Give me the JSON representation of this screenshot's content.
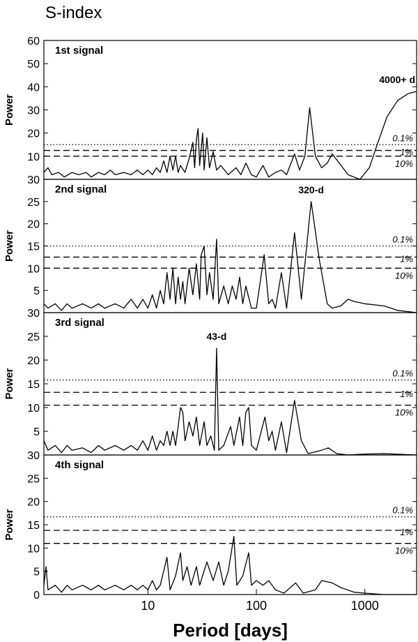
{
  "title": "S-index",
  "chart_data": [
    {
      "type": "line",
      "title": "1st signal",
      "ylabel": "Power",
      "annotation": "4000+ d",
      "xscale": "log",
      "xlim": [
        1.1,
        3000
      ],
      "ylim": [
        0,
        60
      ],
      "yticks": [
        10,
        20,
        30,
        40,
        50,
        60
      ],
      "thresholds": [
        {
          "value": 15,
          "label": "0.1%",
          "dash": "dotted"
        },
        {
          "value": 12.5,
          "label": "1%",
          "dash": "dashed"
        },
        {
          "value": 10,
          "label": "10%",
          "dash": "dashed"
        }
      ],
      "x": [
        1.1,
        1.2,
        1.3,
        1.5,
        1.7,
        2,
        2.3,
        2.7,
        3,
        3.5,
        4,
        4.5,
        5,
        6,
        7,
        8,
        9,
        10,
        11,
        12,
        13,
        14,
        15,
        16,
        17,
        18,
        19,
        20,
        22,
        24,
        26,
        27,
        28,
        29,
        30,
        32,
        33,
        35,
        37,
        40,
        43,
        47,
        55,
        65,
        72,
        80,
        90,
        100,
        115,
        130,
        150,
        170,
        190,
        225,
        250,
        280,
        310,
        350,
        400,
        450,
        500,
        560,
        700,
        900,
        1100,
        1300,
        1600,
        2000,
        2500,
        3000
      ],
      "series": [
        {
          "color": "#000000",
          "values": [
            3,
            5,
            2,
            3,
            1,
            3,
            2,
            3,
            1,
            3,
            2,
            4,
            2,
            3,
            2,
            4,
            2,
            4,
            2,
            5,
            3,
            8,
            3,
            10,
            4,
            10,
            3,
            6,
            3,
            9,
            16,
            5,
            17,
            22,
            6,
            20,
            4,
            18,
            5,
            12,
            4,
            6,
            2,
            5,
            2,
            7,
            2,
            1,
            6,
            1,
            3,
            4,
            2,
            11,
            4,
            10,
            31,
            10,
            5,
            7,
            11,
            8,
            2,
            0,
            5,
            15,
            27,
            34,
            37,
            38
          ]
        }
      ]
    },
    {
      "type": "line",
      "title": "2nd signal",
      "ylabel": "Power",
      "annotation": "320-d",
      "xscale": "log",
      "xlim": [
        1.1,
        3000
      ],
      "ylim": [
        0,
        30
      ],
      "yticks": [
        5,
        10,
        15,
        20,
        25,
        30
      ],
      "thresholds": [
        {
          "value": 15,
          "label": "0.1%",
          "dash": "dotted"
        },
        {
          "value": 12.5,
          "label": "1%",
          "dash": "dashed"
        },
        {
          "value": 10,
          "label": "10%",
          "dash": "dashed"
        }
      ],
      "x": [
        1.1,
        1.2,
        1.4,
        1.6,
        1.8,
        2,
        2.5,
        3,
        3.5,
        4,
        5,
        6,
        7,
        8,
        9,
        10,
        11,
        12,
        13,
        14,
        15,
        16,
        17,
        18,
        19,
        20,
        21,
        22,
        24,
        26,
        28,
        30,
        31,
        33,
        35,
        37,
        40,
        43,
        45,
        50,
        55,
        60,
        65,
        70,
        75,
        80,
        90,
        100,
        118,
        130,
        140,
        150,
        170,
        190,
        225,
        260,
        320,
        380,
        450,
        500,
        600,
        700,
        800,
        1000,
        1500,
        2000,
        3000
      ],
      "series": [
        {
          "color": "#000000",
          "values": [
            2,
            1,
            2,
            0.5,
            2,
            1,
            2,
            1,
            2,
            1,
            2,
            1,
            3,
            1,
            3,
            1,
            4,
            1,
            5,
            2,
            9,
            3,
            10,
            2,
            8,
            3,
            7,
            2,
            10,
            4,
            11,
            3,
            13,
            15,
            4,
            9,
            3,
            16.5,
            2,
            6,
            2,
            6,
            3,
            8,
            2,
            6,
            1,
            1,
            13,
            2,
            3,
            1,
            9,
            1,
            18,
            3,
            25,
            12,
            2,
            1,
            1.5,
            3,
            2.5,
            2,
            1.5,
            0.5,
            0
          ]
        }
      ]
    },
    {
      "type": "line",
      "title": "3rd signal",
      "ylabel": "Power",
      "annotation": "43-d",
      "xscale": "log",
      "xlim": [
        1.1,
        3000
      ],
      "ylim": [
        0,
        30
      ],
      "yticks": [
        5,
        10,
        15,
        20,
        25,
        30
      ],
      "thresholds": [
        {
          "value": 15.8,
          "label": "0.1%",
          "dash": "dotted"
        },
        {
          "value": 13.2,
          "label": "1%",
          "dash": "dashed"
        },
        {
          "value": 10.5,
          "label": "10%",
          "dash": "dashed"
        }
      ],
      "x": [
        1.1,
        1.2,
        1.4,
        1.6,
        1.8,
        2,
        2.5,
        3,
        3.5,
        4,
        5,
        6,
        7,
        8,
        9,
        10,
        11,
        12,
        13,
        14,
        15,
        16,
        17,
        18,
        19,
        20,
        21,
        22,
        24,
        26,
        28,
        30,
        33,
        35,
        38,
        41,
        43,
        45,
        50,
        58,
        62,
        70,
        75,
        80,
        85,
        90,
        100,
        120,
        130,
        140,
        150,
        170,
        190,
        225,
        260,
        300,
        400,
        460,
        550,
        700,
        1000,
        1500,
        3000
      ],
      "series": [
        {
          "color": "#000000",
          "values": [
            3,
            1,
            2,
            0.5,
            2,
            1,
            1.5,
            0.5,
            2,
            1,
            2,
            1,
            2,
            1,
            3,
            1,
            4,
            1,
            3,
            2,
            5,
            2,
            5,
            2,
            6,
            10,
            9,
            3,
            7,
            4,
            8,
            2,
            7,
            2,
            4,
            1,
            22.5,
            1,
            2,
            6,
            2,
            8,
            2,
            9,
            10,
            2,
            1,
            8,
            3,
            5,
            1,
            7,
            0.5,
            11.5,
            3,
            0.3,
            1,
            1.5,
            0.3,
            0,
            0.2,
            0.3,
            0
          ]
        }
      ]
    },
    {
      "type": "line",
      "title": "4th signal",
      "ylabel": "Power",
      "xlabel": "Period [days]",
      "xscale": "log",
      "xlim": [
        1.1,
        3000
      ],
      "xticks": [
        10,
        100,
        1000
      ],
      "ylim": [
        0,
        30
      ],
      "yticks": [
        0,
        5,
        10,
        15,
        20,
        25,
        30
      ],
      "thresholds": [
        {
          "value": 16.7,
          "label": "0.1%",
          "dash": "dotted"
        },
        {
          "value": 13.8,
          "label": "1%",
          "dash": "dashed"
        },
        {
          "value": 11,
          "label": "10%",
          "dash": "dashed"
        }
      ],
      "x": [
        1.1,
        1.15,
        1.2,
        1.4,
        1.6,
        1.8,
        2,
        2.5,
        3,
        3.5,
        4,
        5,
        6,
        7,
        8,
        9,
        10,
        11,
        12,
        13,
        15,
        16,
        18,
        20,
        21,
        23,
        25,
        28,
        30,
        35,
        40,
        45,
        50,
        55,
        62,
        66,
        75,
        85,
        90,
        100,
        115,
        130,
        150,
        180,
        230,
        270,
        350,
        400,
        500,
        600,
        800,
        1000,
        1500,
        3000
      ],
      "series": [
        {
          "color": "#000000",
          "values": [
            2,
            6,
            1,
            2,
            0.5,
            2,
            1,
            2,
            1,
            2,
            1,
            2,
            1,
            2,
            1,
            2,
            1,
            3,
            1,
            2,
            8,
            1,
            4,
            9,
            3,
            6,
            2,
            6,
            2,
            7,
            3,
            7,
            2,
            5,
            12.5,
            2,
            4,
            9,
            2,
            3,
            2,
            3,
            1,
            0.3,
            2.5,
            0.3,
            1,
            3,
            2.5,
            1.5,
            0.5,
            0.3,
            0,
            0
          ]
        }
      ]
    }
  ]
}
